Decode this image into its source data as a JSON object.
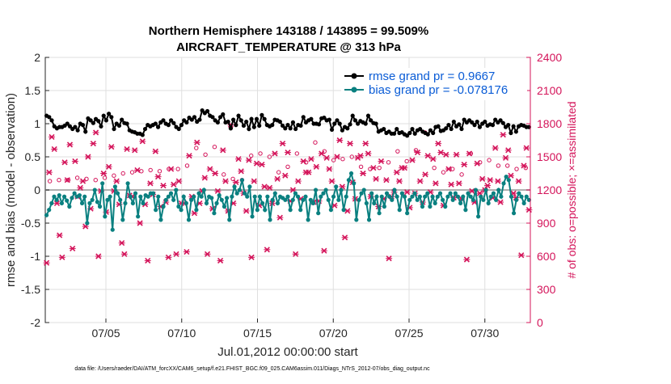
{
  "chart_data": {
    "type": "line",
    "title": "Northern Hemisphere 143188 / 143895 = 99.509%",
    "subtitle": "AIRCRAFT_TEMPERATURE @ 313 hPa",
    "xlabel": "Jul.01,2012 00:00:00 start",
    "ylabel": "rmse and bias (model - observation)",
    "y2label": "# of obs: o=possible; ×=assimilated",
    "footnote": "data file: /Users/raeder/DAI/ATM_forcXX/CAM6_setup/f.e21.FHIST_BGC.f09_025.CAM6assim.011/Diags_NTrS_2012-07/obs_diag_output.nc",
    "xlim": [
      1,
      33
    ],
    "ylim": [
      -2,
      2
    ],
    "y2lim": [
      0,
      2400
    ],
    "x_ticks": [
      5,
      10,
      15,
      20,
      25,
      30
    ],
    "x_tick_labels": [
      "07/05",
      "07/10",
      "07/15",
      "07/20",
      "07/25",
      "07/30"
    ],
    "y_ticks": [
      -2,
      -1.5,
      -1,
      -0.5,
      0,
      0.5,
      1,
      1.5,
      2
    ],
    "y_tick_labels": [
      "-2",
      "-1.5",
      "-1",
      "-0.5",
      "0",
      "0.5",
      "1",
      "1.5",
      "2"
    ],
    "y2_ticks": [
      0,
      300,
      600,
      900,
      1200,
      1500,
      1800,
      2100,
      2400
    ],
    "y2_tick_labels": [
      "0",
      "300",
      "600",
      "900",
      "1200",
      "1500",
      "1800",
      "2100",
      "2400"
    ],
    "legend_position": "top-right",
    "series": [
      {
        "name": "rmse grand pr = 0.9667",
        "color": "#000000",
        "values": [
          1.12,
          1.1,
          1.05,
          0.96,
          0.93,
          0.95,
          0.95,
          0.97,
          1.0,
          0.96,
          0.92,
          0.95,
          0.9,
          1.0,
          0.98,
          0.88,
          1.08,
          1.05,
          1.01,
          1.07,
          1.04,
          0.96,
          1.12,
          1.05,
          1.15,
          1.1,
          0.92,
          1.0,
          0.97,
          1.06,
          1.01,
          1.0,
          0.9,
          0.88,
          0.87,
          0.85,
          0.85,
          0.83,
          0.92,
          0.98,
          0.96,
          0.98,
          1.0,
          0.95,
          1.02,
          1.05,
          1.0,
          0.98,
          1.05,
          1.01,
          0.95,
          0.92,
          0.98,
          1.05,
          1.02,
          1.09,
          1.06,
          1.1,
          1.03,
          1.06,
          1.2,
          1.16,
          1.19,
          1.12,
          1.1,
          1.05,
          1.02,
          1.1,
          1.14,
          1.02,
          1.03,
          0.93,
          1.06,
          0.98,
          1.12,
          1.05,
          0.97,
          1.03,
          0.92,
          1.07,
          0.95,
          1.07,
          0.97,
          1.13,
          1.07,
          0.98,
          0.96,
          0.98,
          1.06,
          1.05,
          1.03,
          0.97,
          0.93,
          0.98,
          0.93,
          1.02,
          0.92,
          0.98,
          0.97,
          1.1,
          1.02,
          1.05,
          1.07,
          1.0,
          1.0,
          0.99,
          1.08,
          1.09,
          1.05,
          1.06,
          0.91,
          1.0,
          1.05,
          1.0,
          0.9,
          0.95,
          0.93,
          0.99,
          1.12,
          1.05,
          1.0,
          1.04,
          1.02,
          1.0,
          1.12,
          1.05,
          1.01,
          1.0,
          0.88,
          0.9,
          0.92,
          0.86,
          0.88,
          0.85,
          0.85,
          0.92,
          0.86,
          0.87,
          0.84,
          0.82,
          0.86,
          0.92,
          0.85,
          0.9,
          0.92,
          0.88,
          0.86,
          0.84,
          0.9,
          0.86,
          0.95,
          0.96,
          0.89,
          0.9,
          0.93,
          0.98,
          0.92,
          1.03,
          0.96,
          0.99,
          0.92,
          1.06,
          1.02,
          1.05,
          1.02,
          0.98,
          1.03,
          0.95,
          1.0,
          1.03,
          0.97,
          0.99,
          0.98,
          1.06,
          1.02,
          1.05,
          1.01,
          0.95,
          0.98,
          0.86,
          0.96,
          0.88,
          0.96,
          0.98,
          0.97,
          0.95,
          0.95
        ]
      },
      {
        "name": "bias grand pr = -0.078176",
        "color": "#0a8080",
        "values": [
          -0.38,
          -0.3,
          -0.2,
          -0.1,
          -0.15,
          -0.08,
          -0.2,
          -0.1,
          -0.16,
          -0.25,
          -0.12,
          -0.05,
          -0.1,
          -0.08,
          -0.2,
          -0.1,
          -0.5,
          -0.2,
          -0.15,
          0.0,
          -0.18,
          -0.25,
          0.1,
          -0.4,
          -0.15,
          -0.1,
          -0.6,
          0.05,
          -0.05,
          -0.15,
          -0.45,
          -0.2,
          0.1,
          -0.1,
          -0.2,
          -0.05,
          -0.4,
          -0.1,
          -0.2,
          -0.08,
          -0.1,
          -0.05,
          -0.05,
          -0.3,
          -0.1,
          -0.45,
          -0.25,
          -0.15,
          -0.1,
          -0.05,
          -0.15,
          0.0,
          -0.25,
          -0.3,
          -0.1,
          -0.2,
          -0.45,
          -0.15,
          -0.1,
          -0.3,
          -0.05,
          -0.1,
          0.0,
          -0.2,
          -0.1,
          -0.12,
          -0.35,
          -0.2,
          -0.08,
          -0.15,
          -0.25,
          -0.12,
          -0.45,
          -0.1,
          0.05,
          -0.05,
          0.0,
          0.15,
          -0.05,
          -0.1,
          0.05,
          -0.4,
          -0.1,
          -0.3,
          -0.1,
          -0.2,
          -0.3,
          -0.1,
          -0.45,
          -0.15,
          -0.05,
          -0.2,
          -0.1,
          -0.12,
          -0.15,
          -0.1,
          -0.3,
          -0.15,
          -0.05,
          -0.1,
          -0.3,
          -0.15,
          -0.1,
          -0.45,
          -0.15,
          -0.2,
          0.0,
          -0.35,
          -0.1,
          -0.05,
          0.0,
          -0.15,
          -0.3,
          -0.1,
          0.05,
          -0.15,
          0.0,
          -0.3,
          -0.1,
          0.15,
          0.25,
          0.1,
          -0.45,
          -0.15,
          -0.05,
          0.0,
          -0.2,
          -0.45,
          -0.05,
          -0.2,
          -0.1,
          -0.35,
          -0.1,
          -0.25,
          -0.05,
          -0.1,
          -0.15,
          0.0,
          -0.1,
          -0.3,
          -0.05,
          -0.1,
          -0.35,
          -0.15,
          -0.1,
          -0.05,
          -0.15,
          -0.1,
          -0.25,
          -0.1,
          -0.05,
          -0.25,
          -0.1,
          -0.2,
          -0.1,
          -0.05,
          -0.15,
          -0.25,
          -0.1,
          -0.05,
          -0.15,
          -0.05,
          -0.1,
          -0.2,
          -0.1,
          -0.3,
          -0.05,
          -0.1,
          -0.15,
          0.0,
          -0.4,
          -0.1,
          -0.15,
          0.0,
          -0.2,
          -0.1,
          -0.05,
          -0.15,
          0.0,
          -0.1,
          0.1,
          0.2,
          0.15,
          -0.1,
          -0.35,
          -0.15,
          -0.05,
          -0.1,
          -0.2,
          -0.1,
          -0.15
        ]
      }
    ],
    "obs_possible": [
      1280,
      1290,
      1290,
      1310,
      1300,
      1290,
      1310,
      1330,
      1350,
      1360,
      1370,
      1380,
      1370,
      1390,
      1390,
      1420,
      1580,
      1520,
      1590,
      1340,
      1300,
      1290,
      1510,
      1530,
      1500,
      1360,
      1410,
      1530,
      1450,
      1630,
      1550,
      1470,
      1480,
      1500,
      1410,
      1390,
      1400,
      1450,
      1550,
      1460,
      1560,
      1720,
      1400,
      1360,
      1390,
      1340,
      1530,
      1450,
      1470,
      1420,
      1420,
      1390,
      1400
    ],
    "obs_assimilated": [
      540,
      1360,
      1680,
      1570,
      1080,
      790,
      590,
      1450,
      1290,
      1610,
      670,
      1460,
      1140,
      1220,
      1280,
      870,
      1500,
      1030,
      1620,
      1720,
      600,
      1190,
      1350,
      1000,
      1410,
      1590,
      1190,
      1280,
      1070,
      720,
      620,
      1570,
      1150,
      1140,
      1560,
      1380,
      900,
      1640,
      1070,
      560,
      1260,
      1160,
      1550,
      1320,
      1050,
      1240,
      1090,
      590,
      1390,
      1250,
      620,
      1280,
      1080,
      1080,
      640,
      1510,
      1140,
      990,
      1630,
      1080,
      1190,
      1310,
      620,
      1390,
      1030,
      1350,
      1190,
      560,
      1560,
      1280,
      1010,
      1790,
      1080,
      1270,
      1480,
      1370,
      1170,
      1010,
      1470,
      590,
      1280,
      1440,
      1060,
      1430,
      1230,
      660,
      1220,
      1080,
      1530,
      1300,
      950,
      1620,
      1330,
      1540,
      1100,
      1200,
      620,
      1280,
      1120,
      1460,
      1360,
      1360,
      1480,
      1090,
      1410,
      1100,
      1530,
      650,
      1490,
      1390,
      1280,
      1060,
      1500,
      1650,
      1230,
      770,
      1010,
      1620,
      1270,
      1120,
      1490,
      1510,
      1350,
      1620,
      1530,
      1140,
      1400,
      1300,
      1050,
      1460,
      1120,
      1290,
      580,
      1140,
      1180,
      1360,
      1280,
      1400,
      1400,
      1180,
      1040,
      1470,
      1170,
      1540,
      1280,
      1090,
      1340,
      1510,
      1180,
      1480,
      1260,
      1620,
      1540,
      1060,
      1520,
      1390,
      1250,
      1130,
      1520,
      1260,
      1120,
      1430,
      570,
      1530,
      1190,
      1090,
      1440,
      1170,
      1300,
      1200,
      1240,
      1290,
      1130,
      1580,
      1280,
      1090,
      1700,
      1490,
      1560,
      1330,
      1170,
      1130,
      1280,
      610,
      1420,
      1580,
      1020
    ]
  }
}
